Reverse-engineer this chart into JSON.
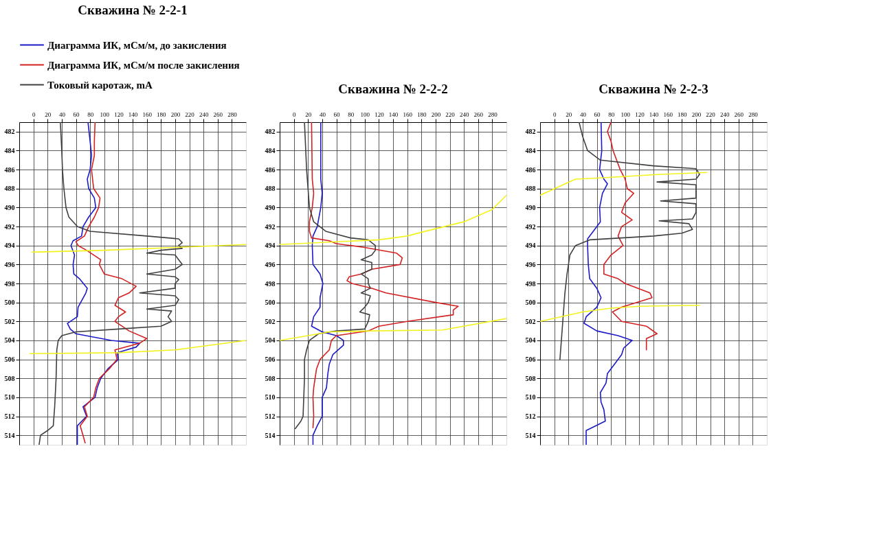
{
  "chart_data": [
    {
      "type": "line",
      "title": "Скважина № 2-2-1",
      "legend": "top",
      "xlim": [
        -20,
        300
      ],
      "xticks": [
        0,
        20,
        40,
        60,
        80,
        100,
        120,
        140,
        160,
        180,
        200,
        220,
        240,
        260,
        280
      ],
      "ylim": [
        515,
        481
      ],
      "yticks": [
        482,
        484,
        486,
        488,
        490,
        492,
        494,
        496,
        498,
        500,
        502,
        504,
        506,
        508,
        510,
        512,
        514
      ],
      "grid": true,
      "series": [
        {
          "name": "Диаграмма ИК, мСм/м, до закисления",
          "color": "#1a1ac8",
          "x": [
            77,
            80,
            82,
            80,
            76,
            78,
            86,
            88,
            78,
            70,
            68,
            56,
            53,
            58,
            56,
            57,
            65,
            76,
            74,
            63,
            62,
            48,
            52,
            60,
            110,
            150,
            145,
            118,
            120,
            105,
            95,
            90,
            87,
            70,
            75,
            62,
            62,
            62
          ],
          "values": [
            481,
            483,
            484.5,
            486,
            487,
            488,
            489,
            490,
            491,
            492,
            493,
            493.5,
            494,
            495,
            496,
            497,
            497.5,
            498.5,
            499,
            500.5,
            501.5,
            502.2,
            502.8,
            503.3,
            504,
            504.3,
            504.7,
            505.3,
            506,
            507,
            508,
            509,
            510,
            511,
            512,
            513,
            514,
            515
          ]
        },
        {
          "name": "Диаграмма ИК, мСм/м после закисления",
          "color": "#d42020",
          "x": [
            87,
            86,
            86,
            82,
            85,
            94,
            92,
            86,
            78,
            72,
            60,
            63,
            75,
            95,
            93,
            100,
            125,
            145,
            135,
            120,
            115,
            130,
            120,
            115,
            125,
            135,
            160,
            150,
            115,
            118,
            107,
            93,
            88,
            85,
            72,
            76,
            66,
            70,
            73
          ],
          "values": [
            481,
            483,
            484.5,
            486,
            488,
            489,
            490,
            491,
            492,
            493,
            493.6,
            494,
            494.5,
            495.5,
            496,
            497,
            497.5,
            498.3,
            499,
            499.5,
            500.3,
            501,
            501.5,
            502,
            502.5,
            503,
            503.8,
            504.3,
            505,
            506,
            507,
            508,
            509,
            510,
            511,
            512,
            513,
            514,
            514.8
          ]
        },
        {
          "name": "Токовый каротаж, mA",
          "color": "#404040",
          "x": [
            38,
            40,
            41,
            43,
            46,
            50,
            62,
            80,
            160,
            205,
            210,
            205,
            210,
            180,
            160,
            200,
            205,
            210,
            200,
            160,
            200,
            205,
            200,
            200,
            150,
            200,
            205,
            200,
            160,
            195,
            190,
            195,
            180,
            120,
            60,
            40,
            35,
            33,
            32,
            30,
            28,
            20,
            10,
            8
          ],
          "values": [
            481,
            484,
            486,
            488,
            490,
            491,
            492,
            492.5,
            493,
            493.3,
            493.7,
            494,
            494.3,
            494.5,
            494.8,
            495,
            495.5,
            496,
            496.5,
            497,
            497.3,
            497.6,
            498,
            498.5,
            499,
            499.3,
            499.7,
            500.3,
            500.7,
            500.9,
            501.5,
            502,
            502.5,
            502.8,
            503.1,
            503.5,
            504,
            505,
            508,
            511,
            513,
            513.5,
            514,
            515
          ]
        },
        {
          "color": "#f2f21c",
          "x": [
            -2,
            100,
            200,
            300
          ],
          "values": [
            494.7,
            494.5,
            494.2,
            493.9
          ]
        },
        {
          "color": "#f2f21c",
          "x": [
            -5,
            120,
            200,
            300
          ],
          "values": [
            505.4,
            505.3,
            505.0,
            504.0
          ]
        }
      ]
    },
    {
      "type": "line",
      "title": "Скважина № 2-2-2",
      "xlim": [
        -20,
        300
      ],
      "xticks": [
        0,
        20,
        40,
        60,
        80,
        100,
        120,
        140,
        160,
        180,
        200,
        220,
        240,
        260,
        280
      ],
      "ylim": [
        515,
        481
      ],
      "yticks": [
        482,
        484,
        486,
        488,
        490,
        492,
        494,
        496,
        498,
        500,
        502,
        504,
        506,
        508,
        510,
        512,
        514
      ],
      "grid": true,
      "series": [
        {
          "color": "#1a1ac8",
          "x": [
            38,
            38,
            40,
            38,
            33,
            27,
            26,
            27,
            37,
            41,
            37,
            37,
            28,
            25,
            40,
            60,
            70,
            70,
            55,
            50,
            48,
            46,
            40,
            40,
            40,
            33,
            27,
            27
          ],
          "values": [
            481,
            487,
            488.5,
            490,
            492,
            493,
            494,
            496,
            497,
            498,
            499.5,
            500.5,
            501.5,
            502.5,
            503.1,
            503.5,
            504,
            504.5,
            505.5,
            506.5,
            507.5,
            509,
            510,
            511,
            512,
            513,
            514,
            515
          ]
        },
        {
          "color": "#d42020",
          "x": [
            25,
            26,
            28,
            26,
            22,
            22,
            25,
            50,
            60,
            100,
            145,
            153,
            150,
            110,
            95,
            78,
            75,
            82,
            110,
            130,
            200,
            232,
            225,
            225,
            160,
            120,
            105,
            60,
            53,
            50,
            37,
            32,
            30,
            28,
            27,
            28,
            27
          ],
          "values": [
            481,
            487,
            488.5,
            490,
            491.5,
            492.5,
            493.2,
            493.5,
            493.8,
            494.2,
            494.8,
            495.3,
            496,
            496.5,
            497,
            497.3,
            497.7,
            498,
            498.5,
            499,
            500,
            500.4,
            500.8,
            501.3,
            502,
            502.5,
            503,
            503.5,
            504,
            505,
            506,
            507,
            508,
            509,
            510,
            512,
            513.2
          ]
        },
        {
          "color": "#404040",
          "x": [
            15,
            18,
            20,
            22,
            28,
            45,
            80,
            105,
            110,
            115,
            115,
            110,
            95,
            110,
            110,
            95,
            105,
            105,
            108,
            95,
            108,
            105,
            100,
            93,
            107,
            105,
            100,
            60,
            35,
            22,
            18,
            15,
            15,
            13,
            10,
            2
          ],
          "values": [
            481,
            486,
            488,
            490,
            491.5,
            492.5,
            493.2,
            493.4,
            493.7,
            494,
            494.5,
            495,
            495.5,
            495.8,
            496.5,
            497,
            497.5,
            498,
            498.5,
            499,
            499.3,
            500,
            500.5,
            501,
            501.3,
            502,
            502.8,
            503,
            503.3,
            504,
            505,
            506,
            508,
            512,
            512.5,
            513.3
          ]
        },
        {
          "color": "#f2f21c",
          "x": [
            -20,
            60,
            120,
            160,
            180,
            240,
            280,
            300
          ],
          "values": [
            493.9,
            493.6,
            493.4,
            493.0,
            492.6,
            491.5,
            490.2,
            488.7
          ]
        },
        {
          "color": "#f2f21c",
          "x": [
            -20,
            20,
            50,
            110,
            210,
            300
          ],
          "values": [
            504.0,
            503.5,
            503.1,
            503.0,
            502.9,
            501.7
          ]
        }
      ]
    },
    {
      "type": "line",
      "title": "Скважина № 2-2-3",
      "xlim": [
        -20,
        300
      ],
      "xticks": [
        0,
        20,
        40,
        60,
        80,
        100,
        120,
        140,
        160,
        180,
        200,
        220,
        240,
        260,
        280
      ],
      "ylim": [
        515,
        481
      ],
      "yticks": [
        482,
        484,
        486,
        488,
        490,
        492,
        494,
        496,
        498,
        500,
        502,
        504,
        506,
        508,
        510,
        512,
        514
      ],
      "grid": true,
      "series": [
        {
          "color": "#1a1ac8",
          "x": [
            66,
            67,
            64,
            70,
            75,
            68,
            64,
            65,
            55,
            47,
            47,
            48,
            50,
            60,
            66,
            60,
            45,
            42,
            60,
            90,
            110,
            98,
            95,
            85,
            75,
            73,
            65,
            66,
            70,
            72,
            45,
            45
          ],
          "values": [
            481,
            484,
            486,
            487,
            487.5,
            488.5,
            490,
            491.5,
            492.5,
            493.3,
            494,
            496,
            497.5,
            498.5,
            499.5,
            500.5,
            501.5,
            502.2,
            503,
            503.5,
            504,
            504.8,
            505.5,
            506.5,
            507.5,
            508.5,
            509.5,
            510.5,
            511.3,
            512.5,
            513.5,
            515
          ]
        },
        {
          "color": "#d42020",
          "x": [
            80,
            75,
            80,
            83,
            88,
            93,
            100,
            103,
            112,
            100,
            95,
            110,
            95,
            90,
            97,
            80,
            70,
            70,
            90,
            100,
            135,
            138,
            95,
            82,
            95,
            130,
            145,
            130,
            130
          ],
          "values": [
            481,
            482,
            483,
            484,
            485,
            486,
            487,
            488,
            488.5,
            489.5,
            490.5,
            491.3,
            492,
            493,
            494,
            495,
            496,
            497,
            497.5,
            498,
            499,
            499.5,
            500.5,
            501,
            502,
            502.5,
            503.3,
            503.8,
            505
          ]
        },
        {
          "color": "#404040",
          "x": [
            35,
            40,
            47,
            65,
            140,
            200,
            205,
            200,
            145,
            200,
            200,
            200,
            150,
            200,
            200,
            195,
            148,
            190,
            195,
            180,
            140,
            50,
            30,
            22,
            18,
            15,
            12,
            10,
            8
          ],
          "values": [
            481,
            482.5,
            484,
            485,
            485.6,
            485.9,
            486.5,
            487,
            487.3,
            487.6,
            488.5,
            489,
            489.3,
            489.6,
            490.5,
            491.2,
            491.4,
            491.7,
            492.3,
            492.7,
            493,
            493.4,
            494,
            495,
            497,
            499,
            502,
            504,
            506
          ]
        },
        {
          "color": "#f2f21c",
          "x": [
            -20,
            30,
            60,
            150,
            215
          ],
          "values": [
            488.7,
            487.0,
            486.9,
            486.5,
            486.3
          ]
        },
        {
          "color": "#f2f21c",
          "x": [
            -20,
            40,
            80,
            120,
            205
          ],
          "values": [
            502.0,
            501.0,
            500.6,
            500.4,
            500.3
          ]
        }
      ]
    }
  ]
}
